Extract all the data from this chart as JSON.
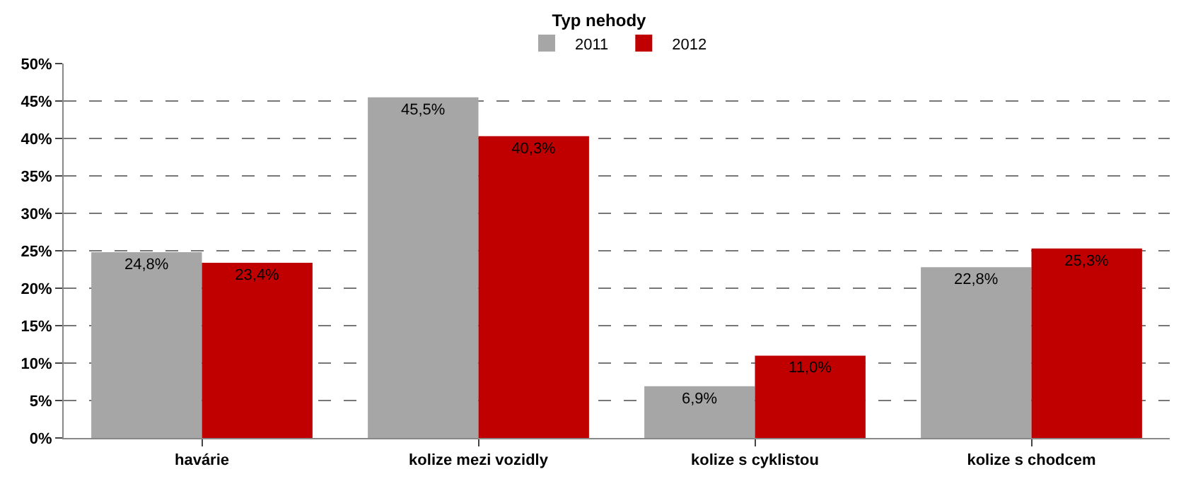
{
  "chart_data": {
    "type": "bar",
    "title": "Typ nehody",
    "categories": [
      "havárie",
      "kolize mezi vozidly",
      "kolize s cyklistou",
      "kolize s chodcem"
    ],
    "series": [
      {
        "name": "2011",
        "color": "#a6a6a6",
        "values": [
          24.8,
          45.5,
          6.9,
          22.8
        ],
        "value_labels": [
          "24,8%",
          "45,5%",
          "6,9%",
          "22,8%"
        ]
      },
      {
        "name": "2012",
        "color": "#c00000",
        "values": [
          23.4,
          40.3,
          11.0,
          25.3
        ],
        "value_labels": [
          "23,4%",
          "40,3%",
          "11,0%",
          "25,3%"
        ]
      }
    ],
    "ylim": [
      0,
      50
    ],
    "yticks": [
      {
        "value": 0,
        "label": "0%"
      },
      {
        "value": 5,
        "label": "5%"
      },
      {
        "value": 10,
        "label": "10%"
      },
      {
        "value": 15,
        "label": "15%"
      },
      {
        "value": 20,
        "label": "20%"
      },
      {
        "value": 25,
        "label": "25%"
      },
      {
        "value": 30,
        "label": "30%"
      },
      {
        "value": 35,
        "label": "35%"
      },
      {
        "value": 40,
        "label": "40%"
      },
      {
        "value": 45,
        "label": "45%"
      },
      {
        "value": 50,
        "label": "50%"
      }
    ],
    "grid": "y",
    "legend": "top"
  }
}
